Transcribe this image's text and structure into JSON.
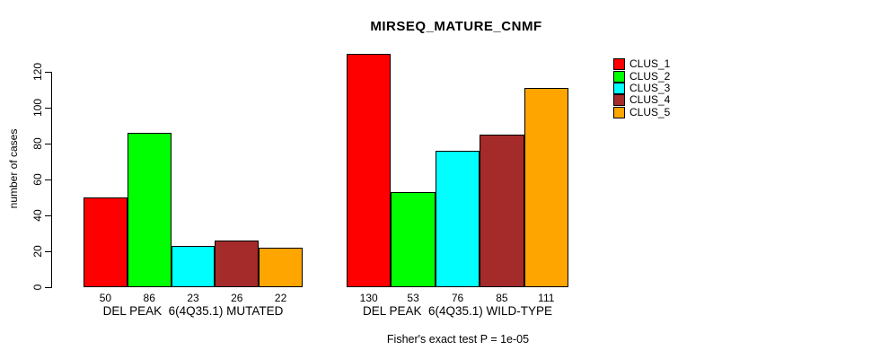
{
  "title": "MIRSEQ_MATURE_CNMF",
  "chart_data": {
    "type": "bar",
    "title": "MIRSEQ_MATURE_CNMF",
    "ylabel": "number of cases",
    "xlabel": "",
    "yticks": [
      0,
      20,
      40,
      60,
      80,
      100,
      120
    ],
    "ylim": [
      0,
      130
    ],
    "grid": false,
    "legend_position": "top-right",
    "categories": [
      "DEL PEAK  6(4Q35.1) MUTATED",
      "DEL PEAK  6(4Q35.1) WILD-TYPE"
    ],
    "series": [
      {
        "name": "CLUS_1",
        "color": "#FF0000",
        "values": [
          50,
          130
        ]
      },
      {
        "name": "CLUS_2",
        "color": "#00FF00",
        "values": [
          86,
          53
        ]
      },
      {
        "name": "CLUS_3",
        "color": "#00FFFF",
        "values": [
          23,
          76
        ]
      },
      {
        "name": "CLUS_4",
        "color": "#A52A2A",
        "values": [
          26,
          85
        ]
      },
      {
        "name": "CLUS_5",
        "color": "#FFA500",
        "values": [
          22,
          111
        ]
      }
    ],
    "bar_value_labels_shown": true,
    "annotation": "Fisher's exact test P = 1e-05"
  }
}
